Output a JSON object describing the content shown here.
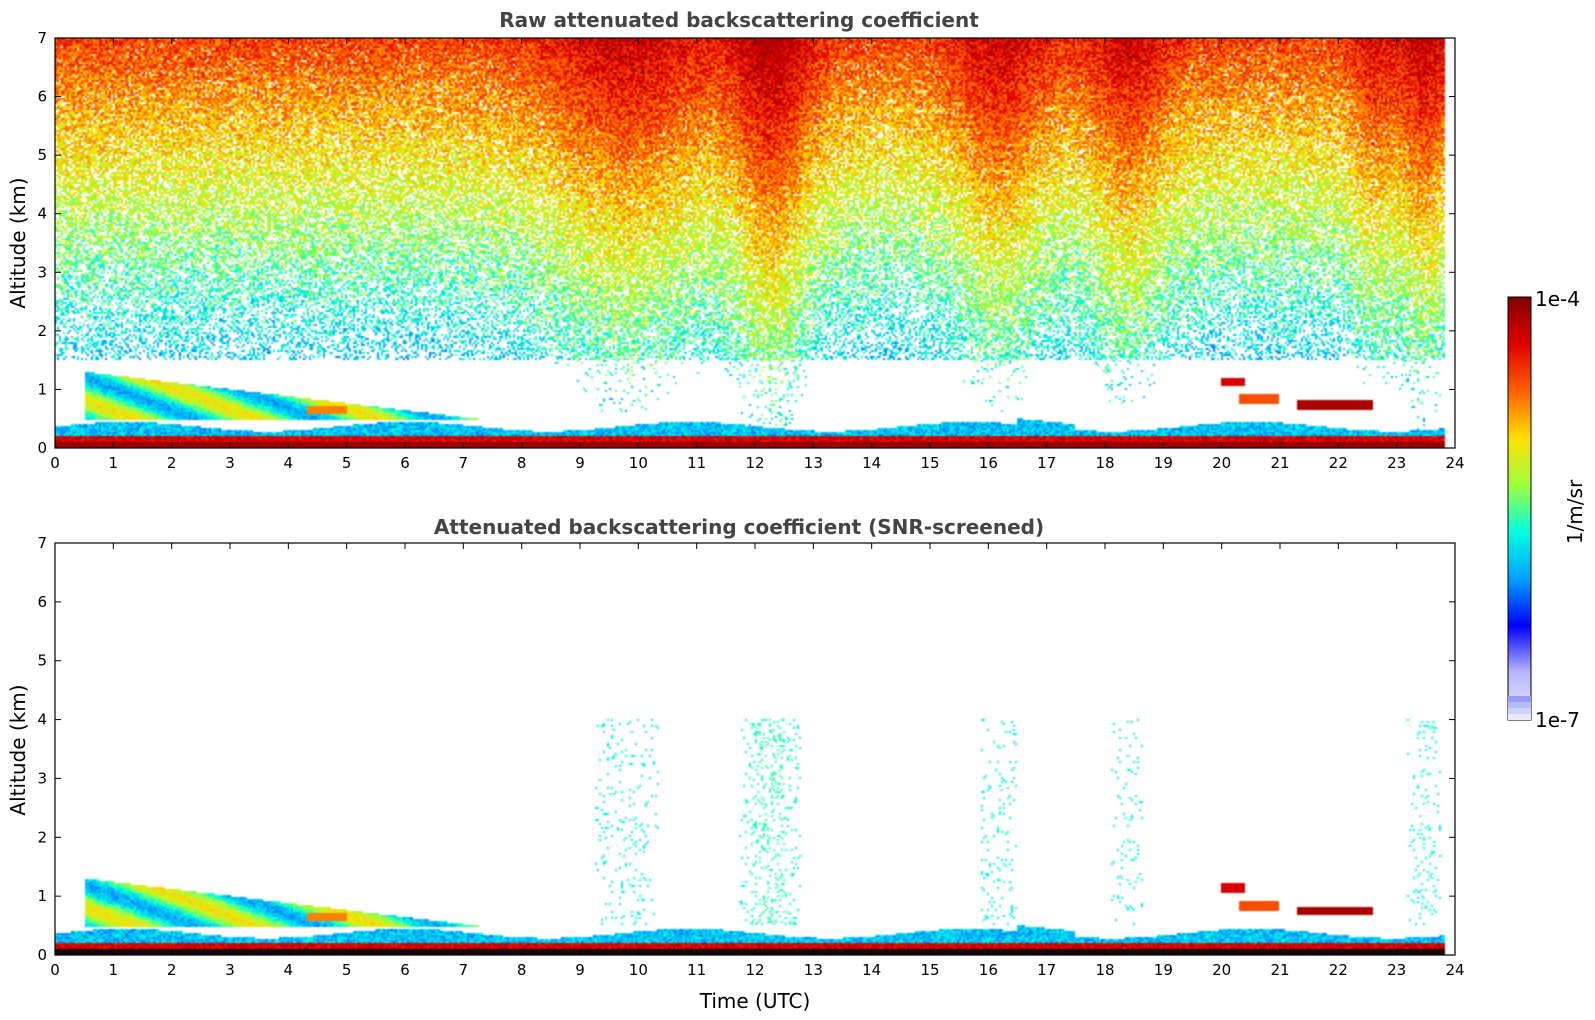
{
  "chart_data": [
    {
      "type": "heatmap",
      "title": "Raw attenuated backscattering coefficient",
      "xlabel": "",
      "ylabel": "Altitude (km)",
      "xlim": [
        0,
        24
      ],
      "ylim": [
        0,
        7
      ],
      "xticks": [
        0,
        1,
        2,
        3,
        4,
        5,
        6,
        7,
        8,
        9,
        10,
        11,
        12,
        13,
        14,
        15,
        16,
        17,
        18,
        19,
        20,
        21,
        22,
        23,
        24
      ],
      "yticks": [
        0,
        1,
        2,
        3,
        4,
        5,
        6,
        7
      ],
      "screened": false
    },
    {
      "type": "heatmap",
      "title": "Attenuated backscattering coefficient (SNR-screened)",
      "xlabel": "Time (UTC)",
      "ylabel": "Altitude (km)",
      "xlim": [
        0,
        24
      ],
      "ylim": [
        0,
        7
      ],
      "xticks": [
        0,
        1,
        2,
        3,
        4,
        5,
        6,
        7,
        8,
        9,
        10,
        11,
        12,
        13,
        14,
        15,
        16,
        17,
        18,
        19,
        20,
        21,
        22,
        23,
        24
      ],
      "yticks": [
        0,
        1,
        2,
        3,
        4,
        5,
        6,
        7
      ],
      "screened": true
    }
  ],
  "colorbar": {
    "label": "1/m/sr",
    "max_label": "1e-4",
    "min_label": "1e-7",
    "scale": "log",
    "range": [
      1e-07,
      0.0001
    ],
    "colors": [
      "#e8e8ff",
      "#b8b8ff",
      "#0000ff",
      "#00a0ff",
      "#00ffe0",
      "#a0ff40",
      "#ffe000",
      "#ff6000",
      "#e00000",
      "#800000"
    ]
  }
}
